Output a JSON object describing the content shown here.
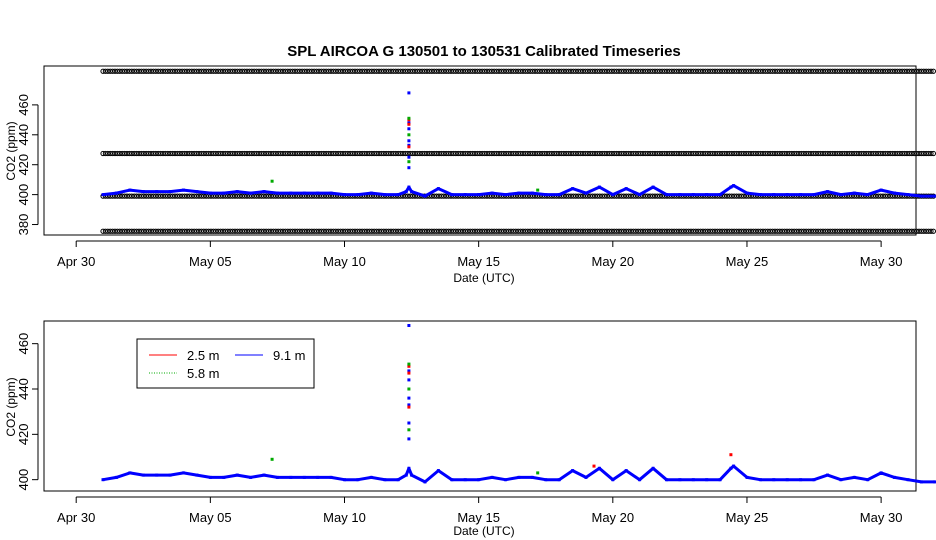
{
  "title": "SPL   AIRCOA  G    130501  to  130531   Calibrated Timeseries",
  "colors": {
    "series_2_5": "#ff0000",
    "series_5_8": "#00aa00",
    "series_9_1": "#0000ff",
    "ref": "#000000",
    "axis": "#000000"
  },
  "chart_data": [
    {
      "type": "scatter",
      "panel": "top",
      "xlabel": "Date (UTC)",
      "ylabel": "CO2 (ppm)",
      "xlim_day": [
        -1.2,
        31.3
      ],
      "ylim": [
        373,
        486
      ],
      "x_ticks": [
        {
          "day": 0,
          "label": "Apr 30"
        },
        {
          "day": 5,
          "label": "May 05"
        },
        {
          "day": 10,
          "label": "May 10"
        },
        {
          "day": 15,
          "label": "May 15"
        },
        {
          "day": 20,
          "label": "May 20"
        },
        {
          "day": 25,
          "label": "May 25"
        },
        {
          "day": 30,
          "label": "May 30"
        }
      ],
      "y_ticks": [
        380,
        400,
        420,
        440,
        460
      ],
      "reference_levels": [
        {
          "value": 375.5
        },
        {
          "value": 399.0
        },
        {
          "value": 427.5
        },
        {
          "value": 482.5
        }
      ],
      "series": [
        {
          "color_key": "series_9_1",
          "x_day": [
            1,
            1.5,
            2,
            2.5,
            3,
            3.5,
            4,
            4.5,
            5,
            5.5,
            6,
            6.5,
            7,
            7.5,
            8,
            8.5,
            9,
            9.5,
            10,
            10.5,
            11,
            11.5,
            12,
            12.3,
            12.4,
            12.5,
            13,
            13.5,
            14,
            14.5,
            15,
            15.5,
            16,
            16.5,
            17,
            17.5,
            18,
            18.5,
            19,
            19.5,
            20,
            20.5,
            21,
            21.5,
            22,
            22.5,
            23,
            23.5,
            24,
            24.4,
            24.5,
            25,
            25.5,
            26,
            26.5,
            27,
            27.5,
            28,
            28.5,
            29,
            29.5,
            30,
            30.5,
            31,
            31.5,
            32
          ],
          "values": [
            400,
            401,
            403,
            402,
            402,
            402,
            403,
            402,
            401,
            401,
            402,
            401,
            402,
            401,
            401,
            401,
            401,
            401,
            400,
            400,
            401,
            400,
            400,
            402,
            405,
            402,
            399,
            404,
            400,
            400,
            400,
            401,
            400,
            401,
            401,
            400,
            400,
            404,
            401,
            405,
            400,
            404,
            400,
            405,
            400,
            400,
            400,
            400,
            400,
            405,
            406,
            401,
            400,
            400,
            400,
            400,
            400,
            402,
            400,
            401,
            400,
            403,
            401,
            400,
            399,
            399
          ]
        },
        {
          "color_key": "series_9_1",
          "x_day": [
            12.4,
            12.4,
            12.4,
            12.4,
            12.4,
            12.4,
            12.4
          ],
          "values": [
            468,
            448,
            444,
            436,
            433,
            425,
            418
          ]
        },
        {
          "color_key": "series_2_5",
          "x_day": [
            12.4,
            12.4,
            12.4
          ],
          "values": [
            450,
            447,
            432
          ]
        },
        {
          "color_key": "series_5_8",
          "x_day": [
            12.4,
            12.4,
            12.4,
            7.3,
            17.2
          ],
          "values": [
            451,
            440,
            422,
            409,
            403
          ]
        }
      ]
    },
    {
      "type": "line",
      "panel": "bottom",
      "xlabel": "Date (UTC)",
      "ylabel": "CO2 (ppm)",
      "xlim_day": [
        -1.2,
        31.3
      ],
      "ylim": [
        395,
        470
      ],
      "x_ticks": [
        {
          "day": 0,
          "label": "Apr 30"
        },
        {
          "day": 5,
          "label": "May 05"
        },
        {
          "day": 10,
          "label": "May 10"
        },
        {
          "day": 15,
          "label": "May 15"
        },
        {
          "day": 20,
          "label": "May 20"
        },
        {
          "day": 25,
          "label": "May 25"
        },
        {
          "day": 30,
          "label": "May 30"
        }
      ],
      "y_ticks": [
        400,
        420,
        440,
        460
      ],
      "legend": {
        "position": "top-left",
        "items": [
          {
            "label": "2.5 m",
            "color_key": "series_2_5"
          },
          {
            "label": "9.1 m",
            "color_key": "series_9_1"
          },
          {
            "label": "5.8 m",
            "color_key": "series_5_8"
          }
        ]
      },
      "series": [
        {
          "color_key": "series_9_1",
          "x_day": [
            1,
            1.5,
            2,
            2.5,
            3,
            3.5,
            4,
            4.5,
            5,
            5.5,
            6,
            6.5,
            7,
            7.5,
            8,
            8.5,
            9,
            9.5,
            10,
            10.5,
            11,
            11.5,
            12,
            12.3,
            12.4,
            12.5,
            13,
            13.5,
            14,
            14.5,
            15,
            15.5,
            16,
            16.5,
            17,
            17.5,
            18,
            18.5,
            19,
            19.5,
            20,
            20.5,
            21,
            21.5,
            22,
            22.5,
            23,
            23.5,
            24,
            24.4,
            24.5,
            25,
            25.5,
            26,
            26.5,
            27,
            27.5,
            28,
            28.5,
            29,
            29.5,
            30,
            30.5,
            31,
            31.5,
            32
          ],
          "values": [
            400,
            401,
            403,
            402,
            402,
            402,
            403,
            402,
            401,
            401,
            402,
            401,
            402,
            401,
            401,
            401,
            401,
            401,
            400,
            400,
            401,
            400,
            400,
            402,
            405,
            402,
            399,
            404,
            400,
            400,
            400,
            401,
            400,
            401,
            401,
            400,
            400,
            404,
            401,
            405,
            400,
            404,
            400,
            405,
            400,
            400,
            400,
            400,
            400,
            405,
            406,
            401,
            400,
            400,
            400,
            400,
            400,
            402,
            400,
            401,
            400,
            403,
            401,
            400,
            399,
            399
          ]
        },
        {
          "color_key": "series_9_1",
          "x_day": [
            12.4,
            12.4,
            12.4,
            12.4,
            12.4,
            12.4,
            12.4
          ],
          "values": [
            468,
            448,
            444,
            436,
            433,
            425,
            418
          ]
        },
        {
          "color_key": "series_2_5",
          "x_day": [
            12.4,
            12.4,
            12.4,
            24.4,
            19.3
          ],
          "values": [
            450,
            447,
            432,
            411,
            406
          ]
        },
        {
          "color_key": "series_5_8",
          "x_day": [
            12.4,
            12.4,
            12.4,
            7.3,
            17.2
          ],
          "values": [
            451,
            440,
            422,
            409,
            403
          ]
        }
      ]
    }
  ]
}
